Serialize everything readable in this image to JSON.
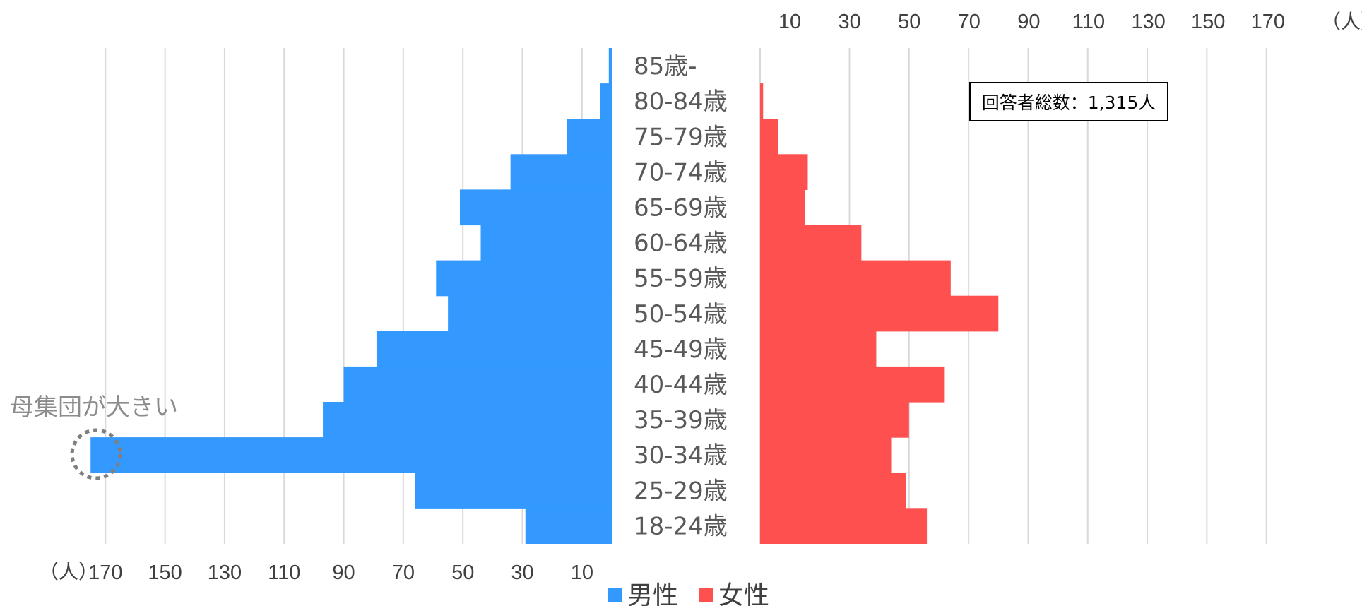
{
  "chart_data": {
    "type": "bar",
    "subtype": "population-pyramid",
    "categories": [
      "85歳-",
      "80-84歳",
      "75-79歳",
      "70-74歳",
      "65-69歳",
      "60-64歳",
      "55-59歳",
      "50-54歳",
      "45-49歳",
      "40-44歳",
      "35-39歳",
      "30-34歳",
      "25-29歳",
      "18-24歳"
    ],
    "series": [
      {
        "name": "男性",
        "color": "#3399ff",
        "values": [
          1,
          4,
          15,
          34,
          51,
          44,
          59,
          55,
          79,
          90,
          97,
          175,
          66,
          29
        ]
      },
      {
        "name": "女性",
        "color": "#ff5050",
        "values": [
          0,
          1,
          6,
          16,
          15,
          34,
          64,
          80,
          39,
          62,
          50,
          44,
          49,
          56
        ]
      }
    ],
    "male_axis": {
      "ticks": [
        "170",
        "150",
        "130",
        "110",
        "90",
        "70",
        "50",
        "30",
        "10"
      ],
      "unit": "（人）",
      "range": [
        0,
        180
      ]
    },
    "female_axis": {
      "ticks": [
        "10",
        "30",
        "50",
        "70",
        "90",
        "110",
        "130",
        "150",
        "170"
      ],
      "unit": "（人）",
      "range": [
        0,
        180
      ]
    },
    "grid": true,
    "legend_position": "bottom-center",
    "annotation": "母集団が大きい",
    "total_label": "回答者総数：1,315人"
  }
}
